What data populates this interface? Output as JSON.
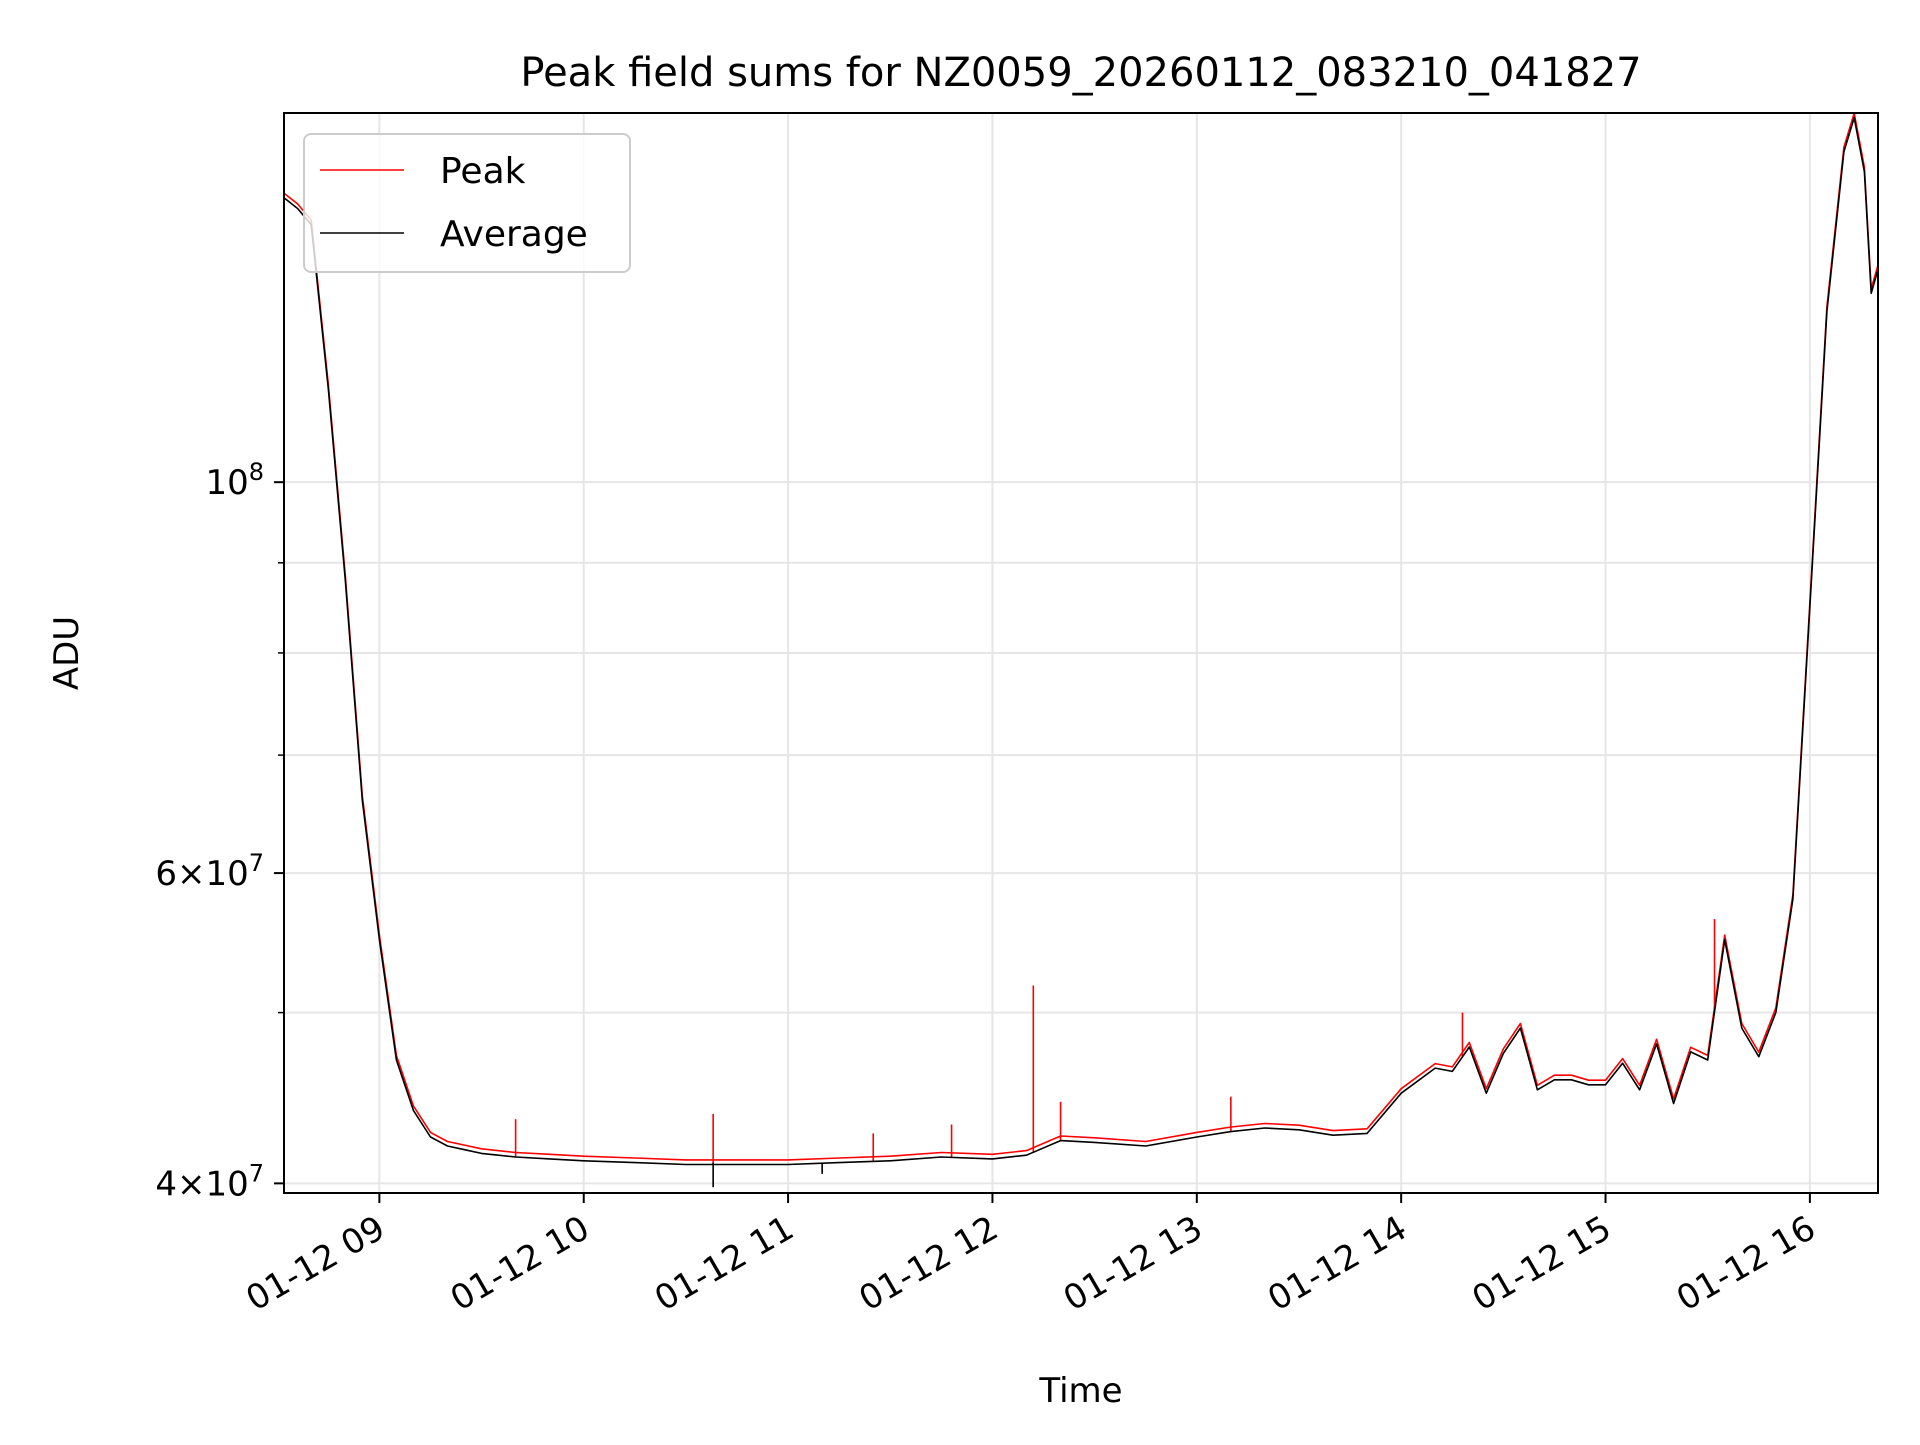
{
  "chart_data": {
    "type": "line",
    "title": "Peak field sums for NZ0059_20260112_083210_041827",
    "xlabel": "Time",
    "ylabel": "ADU",
    "yscale": "log",
    "ylim": [
      39500000,
      162000000
    ],
    "xlim": [
      "2026-01-12 08:32",
      "2026-01-12 16:20"
    ],
    "grid": true,
    "legend_position": "upper-left",
    "xticks": [
      {
        "value": "2026-01-12 09:00",
        "label": "01-12 09"
      },
      {
        "value": "2026-01-12 10:00",
        "label": "01-12 10"
      },
      {
        "value": "2026-01-12 11:00",
        "label": "01-12 11"
      },
      {
        "value": "2026-01-12 12:00",
        "label": "01-12 12"
      },
      {
        "value": "2026-01-12 13:00",
        "label": "01-12 13"
      },
      {
        "value": "2026-01-12 14:00",
        "label": "01-12 14"
      },
      {
        "value": "2026-01-12 15:00",
        "label": "01-12 15"
      },
      {
        "value": "2026-01-12 16:00",
        "label": "01-12 16"
      }
    ],
    "yticks_major": [
      {
        "value": 40000000,
        "base": "4",
        "exp": "7",
        "style": "mult"
      },
      {
        "value": 60000000,
        "base": "6",
        "exp": "7",
        "style": "mult"
      },
      {
        "value": 100000000,
        "base": "10",
        "exp": "8",
        "style": "pow"
      }
    ],
    "yticks_minor": [
      50000000,
      70000000,
      80000000,
      90000000
    ],
    "series": [
      {
        "name": "Peak",
        "color": "#ff0000"
      },
      {
        "name": "Average",
        "color": "#000000"
      }
    ],
    "x": [
      "2026-01-12 08:32",
      "2026-01-12 08:36",
      "2026-01-12 08:40",
      "2026-01-12 08:45",
      "2026-01-12 08:50",
      "2026-01-12 08:55",
      "2026-01-12 09:00",
      "2026-01-12 09:05",
      "2026-01-12 09:10",
      "2026-01-12 09:15",
      "2026-01-12 09:20",
      "2026-01-12 09:25",
      "2026-01-12 09:30",
      "2026-01-12 09:40",
      "2026-01-12 09:50",
      "2026-01-12 10:00",
      "2026-01-12 10:15",
      "2026-01-12 10:30",
      "2026-01-12 10:45",
      "2026-01-12 11:00",
      "2026-01-12 11:15",
      "2026-01-12 11:30",
      "2026-01-12 11:45",
      "2026-01-12 12:00",
      "2026-01-12 12:10",
      "2026-01-12 12:20",
      "2026-01-12 12:30",
      "2026-01-12 12:45",
      "2026-01-12 13:00",
      "2026-01-12 13:10",
      "2026-01-12 13:20",
      "2026-01-12 13:30",
      "2026-01-12 13:40",
      "2026-01-12 13:50",
      "2026-01-12 14:00",
      "2026-01-12 14:10",
      "2026-01-12 14:15",
      "2026-01-12 14:20",
      "2026-01-12 14:25",
      "2026-01-12 14:30",
      "2026-01-12 14:35",
      "2026-01-12 14:40",
      "2026-01-12 14:45",
      "2026-01-12 14:50",
      "2026-01-12 14:55",
      "2026-01-12 15:00",
      "2026-01-12 15:05",
      "2026-01-12 15:10",
      "2026-01-12 15:15",
      "2026-01-12 15:20",
      "2026-01-12 15:25",
      "2026-01-12 15:30",
      "2026-01-12 15:35",
      "2026-01-12 15:40",
      "2026-01-12 15:45",
      "2026-01-12 15:50",
      "2026-01-12 15:55",
      "2026-01-12 16:00",
      "2026-01-12 16:05",
      "2026-01-12 16:10",
      "2026-01-12 16:13",
      "2026-01-12 16:16",
      "2026-01-12 16:18",
      "2026-01-12 16:19",
      "2026-01-12 16:20"
    ],
    "average": [
      145000000,
      143000000,
      140000000,
      113000000,
      88000000,
      66000000,
      55000000,
      47000000,
      44000000,
      42500000,
      42000000,
      41800000,
      41600000,
      41400000,
      41300000,
      41200000,
      41100000,
      41000000,
      41000000,
      41000000,
      41100000,
      41200000,
      41400000,
      41300000,
      41500000,
      42300000,
      42200000,
      42000000,
      42500000,
      42800000,
      43000000,
      42900000,
      42600000,
      42700000,
      45000000,
      46500000,
      46300000,
      47800000,
      45000000,
      47400000,
      49000000,
      45200000,
      45800000,
      45800000,
      45500000,
      45500000,
      46800000,
      45200000,
      48000000,
      44400000,
      47500000,
      47000000,
      55000000,
      49000000,
      47200000,
      50000000,
      58000000,
      85000000,
      125000000,
      154000000,
      161000000,
      150000000,
      128000000,
      130000000,
      132000000
    ],
    "peak_spikes": [
      {
        "x": "2026-01-12 09:40",
        "y": 43500000
      },
      {
        "x": "2026-01-12 10:38",
        "y": 43800000
      },
      {
        "x": "2026-01-12 11:25",
        "y": 42700000
      },
      {
        "x": "2026-01-12 11:48",
        "y": 43200000
      },
      {
        "x": "2026-01-12 12:12",
        "y": 51800000
      },
      {
        "x": "2026-01-12 12:20",
        "y": 44500000
      },
      {
        "x": "2026-01-12 13:10",
        "y": 44800000
      },
      {
        "x": "2026-01-12 14:18",
        "y": 50000000
      },
      {
        "x": "2026-01-12 15:32",
        "y": 56500000
      }
    ],
    "avg_dips": [
      {
        "x": "2026-01-12 10:38",
        "y": 39800000
      },
      {
        "x": "2026-01-12 11:10",
        "y": 40500000
      }
    ]
  }
}
